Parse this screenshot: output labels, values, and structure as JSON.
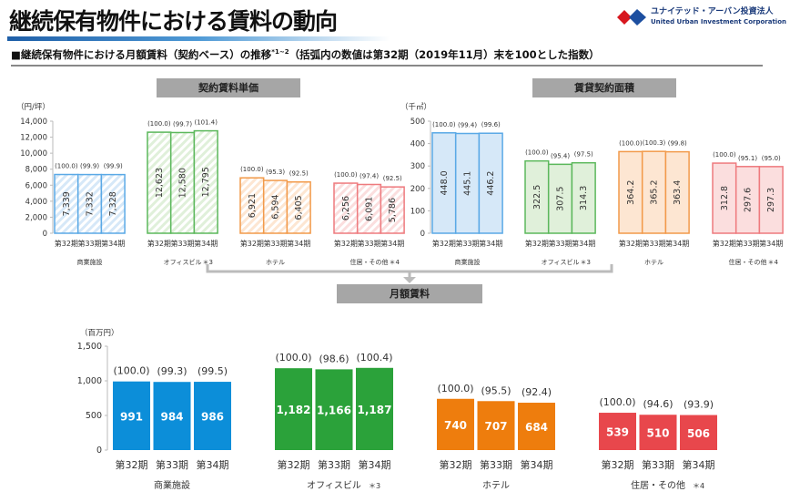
{
  "title": "継続保有物件における賃料の動向",
  "logo": {
    "name_ja": "ユナイテッド・アーバン投資法人",
    "name_en": "United Urban Investment Corporation"
  },
  "subtitle": {
    "text": "■継続保有物件における月額賃料（契約ベース）の推移",
    "sup": "*1~2",
    "note": "（括弧内の数値は第32期（2019年11月）末を100とした指数）"
  },
  "colors": {
    "commercial": "#0c8ed9",
    "office": "#2ba23a",
    "hotel": "#ee7d0d",
    "residential": "#e8474c"
  },
  "chart_data": [
    {
      "type": "bar",
      "title": "契約賃料単価",
      "ylabel": "（円/坪）",
      "ylim": [
        0,
        14000
      ],
      "yticks": [
        "0",
        "2,000",
        "4,000",
        "6,000",
        "8,000",
        "10,000",
        "12,000",
        "14,000"
      ],
      "periods": [
        "第32期",
        "第33期",
        "第34期"
      ],
      "style": "hatched",
      "groups": [
        {
          "name": "商業施設",
          "note": "",
          "key": "commercial",
          "values": [
            7339,
            7332,
            7328
          ],
          "labels": [
            "7,339",
            "7,332",
            "7,328"
          ],
          "index": [
            "(100.0)",
            "(99.9)",
            "(99.9)"
          ]
        },
        {
          "name": "オフィスビル",
          "note": "＊3",
          "key": "office",
          "values": [
            12623,
            12580,
            12795
          ],
          "labels": [
            "12,623",
            "12,580",
            "12,795"
          ],
          "index": [
            "(100.0)",
            "(99.7)",
            "(101.4)"
          ]
        },
        {
          "name": "ホテル",
          "note": "",
          "key": "hotel",
          "values": [
            6921,
            6594,
            6405
          ],
          "labels": [
            "6,921",
            "6,594",
            "6,405"
          ],
          "index": [
            "(100.0)",
            "(95.3)",
            "(92.5)"
          ]
        },
        {
          "name": "住居・その他",
          "note": "＊4",
          "key": "residential",
          "values": [
            6256,
            6091,
            5786
          ],
          "labels": [
            "6,256",
            "6,091",
            "5,786"
          ],
          "index": [
            "(100.0)",
            "(97.4)",
            "(92.5)"
          ]
        }
      ]
    },
    {
      "type": "bar",
      "title": "賃貸契約面積",
      "ylabel": "（千㎡）",
      "ylim": [
        0,
        500
      ],
      "yticks": [
        "0",
        "100",
        "200",
        "300",
        "400",
        "500"
      ],
      "periods": [
        "第32期",
        "第33期",
        "第34期"
      ],
      "style": "light",
      "groups": [
        {
          "name": "商業施設",
          "note": "",
          "key": "commercial",
          "values": [
            448.0,
            445.1,
            446.2
          ],
          "labels": [
            "448.0",
            "445.1",
            "446.2"
          ],
          "index": [
            "(100.0)",
            "(99.4)",
            "(99.6)"
          ]
        },
        {
          "name": "オフィスビル",
          "note": "＊3",
          "key": "office",
          "values": [
            322.5,
            307.5,
            314.3
          ],
          "labels": [
            "322.5",
            "307.5",
            "314.3"
          ],
          "index": [
            "(100.0)",
            "(95.4)",
            "(97.5)"
          ]
        },
        {
          "name": "ホテル",
          "note": "",
          "key": "hotel",
          "values": [
            364.2,
            365.2,
            363.4
          ],
          "labels": [
            "364.2",
            "365.2",
            "363.4"
          ],
          "index": [
            "(100.0)",
            "(100.3)",
            "(99.8)"
          ]
        },
        {
          "name": "住居・その他",
          "note": "＊4",
          "key": "residential",
          "values": [
            312.8,
            297.6,
            297.3
          ],
          "labels": [
            "312.8",
            "297.6",
            "297.3"
          ],
          "index": [
            "(100.0)",
            "(95.1)",
            "(95.0)"
          ]
        }
      ]
    },
    {
      "type": "bar",
      "title": "月額賃料",
      "ylabel": "（百万円）",
      "ylim": [
        0,
        1500
      ],
      "yticks": [
        "0",
        "500",
        "1,000",
        "1,500"
      ],
      "periods": [
        "第32期",
        "第33期",
        "第34期"
      ],
      "style": "solid",
      "groups": [
        {
          "name": "商業施設",
          "note": "",
          "key": "commercial",
          "values": [
            991,
            984,
            986
          ],
          "labels": [
            "991",
            "984",
            "986"
          ],
          "index": [
            "(100.0)",
            "(99.3)",
            "(99.5)"
          ]
        },
        {
          "name": "オフィスビル",
          "note": "＊3",
          "key": "office",
          "values": [
            1182,
            1166,
            1187
          ],
          "labels": [
            "1,182",
            "1,166",
            "1,187"
          ],
          "index": [
            "(100.0)",
            "(98.6)",
            "(100.4)"
          ]
        },
        {
          "name": "ホテル",
          "note": "",
          "key": "hotel",
          "values": [
            740,
            707,
            684
          ],
          "labels": [
            "740",
            "707",
            "684"
          ],
          "index": [
            "(100.0)",
            "(95.5)",
            "(92.4)"
          ]
        },
        {
          "name": "住居・その他",
          "note": "＊4",
          "key": "residential",
          "values": [
            539,
            510,
            506
          ],
          "labels": [
            "539",
            "510",
            "506"
          ],
          "index": [
            "(100.0)",
            "(94.6)",
            "(93.9)"
          ]
        }
      ]
    }
  ]
}
